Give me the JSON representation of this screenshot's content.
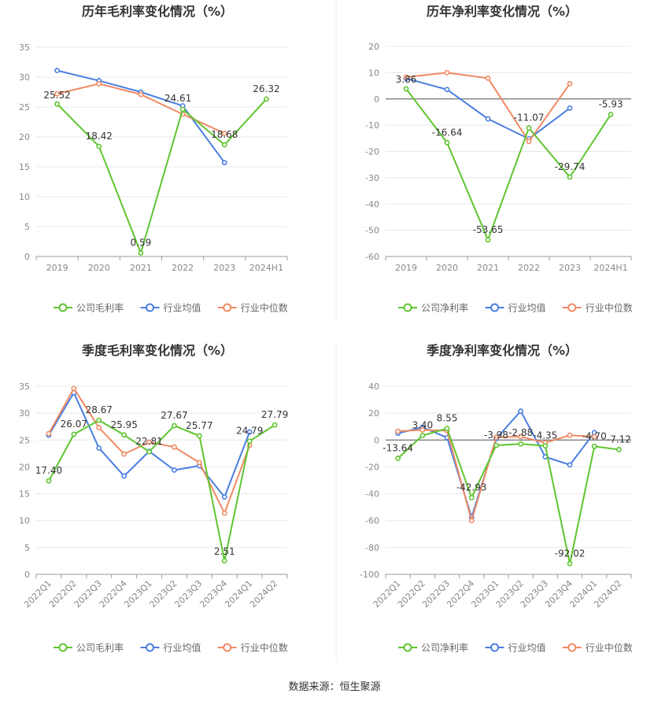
{
  "footer": {
    "source": "数据来源：恒生聚源"
  },
  "colors": {
    "company": "#5ec52f",
    "avg": "#4a7fe0",
    "median": "#f08a64",
    "grid": "#e8e8e8",
    "axis": "#888888",
    "title": "#333333"
  },
  "chart_data": [
    {
      "id": "annual-gross",
      "type": "line",
      "title": "历年毛利率变化情况（%）",
      "categories": [
        "2019",
        "2020",
        "2021",
        "2022",
        "2023",
        "2024H1"
      ],
      "ylim": [
        0,
        35
      ],
      "yticks": [
        0,
        5,
        10,
        15,
        20,
        25,
        30,
        35
      ],
      "grid": true,
      "legend": "bottom",
      "rotate_x": false,
      "series": [
        {
          "name": "公司毛利率",
          "key": "company",
          "values": [
            25.52,
            18.42,
            0.59,
            24.61,
            18.68,
            26.32
          ],
          "labels": [
            "25.52",
            "18.42",
            "0.59",
            "24.61",
            "18.68",
            "26.32"
          ]
        },
        {
          "name": "行业均值",
          "key": "avg",
          "values": [
            31.1,
            29.4,
            27.5,
            25.2,
            15.7,
            null
          ]
        },
        {
          "name": "行业中位数",
          "key": "median",
          "values": [
            27.2,
            28.9,
            27.1,
            23.8,
            20.6,
            null
          ]
        }
      ]
    },
    {
      "id": "annual-net",
      "type": "line",
      "title": "历年净利率变化情况（%）",
      "categories": [
        "2019",
        "2020",
        "2021",
        "2022",
        "2023",
        "2024H1"
      ],
      "ylim": [
        -60,
        20
      ],
      "yticks": [
        -60,
        -50,
        -40,
        -30,
        -20,
        -10,
        0,
        10,
        20
      ],
      "grid": true,
      "legend": "bottom",
      "rotate_x": false,
      "series": [
        {
          "name": "公司净利率",
          "key": "company",
          "values": [
            3.86,
            -16.64,
            -53.65,
            -11.07,
            -29.74,
            -5.93
          ],
          "labels": [
            "3.86",
            "-16.64",
            "-53.65",
            "-11.07",
            "-29.74",
            "-5.93"
          ]
        },
        {
          "name": "行业均值",
          "key": "avg",
          "values": [
            7.8,
            3.6,
            -7.6,
            -15.2,
            -3.5,
            null
          ]
        },
        {
          "name": "行业中位数",
          "key": "median",
          "values": [
            8.3,
            10.0,
            7.9,
            -16.2,
            5.8,
            null
          ]
        }
      ]
    },
    {
      "id": "quarterly-gross",
      "type": "line",
      "title": "季度毛利率变化情况（%）",
      "categories": [
        "2022Q1",
        "2022Q2",
        "2022Q3",
        "2022Q4",
        "2023Q1",
        "2023Q2",
        "2023Q3",
        "2023Q4",
        "2024Q1",
        "2024Q2"
      ],
      "ylim": [
        0,
        35
      ],
      "yticks": [
        0,
        5,
        10,
        15,
        20,
        25,
        30,
        35
      ],
      "grid": true,
      "legend": "bottom",
      "rotate_x": true,
      "series": [
        {
          "name": "公司毛利率",
          "key": "company",
          "values": [
            17.4,
            26.07,
            28.67,
            25.95,
            22.81,
            27.67,
            25.77,
            2.51,
            24.79,
            27.79
          ],
          "labels": [
            "17.40",
            "26.07",
            "28.67",
            "25.95",
            "22.81",
            "27.67",
            "25.77",
            "2.51",
            "24.79",
            "27.79"
          ]
        },
        {
          "name": "行业均值",
          "key": "avg",
          "values": [
            25.9,
            33.8,
            23.5,
            18.3,
            22.9,
            19.4,
            20.2,
            14.4,
            26.5,
            null
          ]
        },
        {
          "name": "行业中位数",
          "key": "median",
          "values": [
            26.2,
            34.6,
            27.3,
            22.4,
            24.6,
            23.7,
            20.8,
            11.4,
            24.0,
            null
          ]
        }
      ]
    },
    {
      "id": "quarterly-net",
      "type": "line",
      "title": "季度净利率变化情况（%）",
      "categories": [
        "2022Q1",
        "2022Q2",
        "2022Q3",
        "2022Q4",
        "2023Q1",
        "2023Q2",
        "2023Q3",
        "2023Q4",
        "2024Q1",
        "2024Q2"
      ],
      "ylim": [
        -100,
        40
      ],
      "yticks": [
        -100,
        -80,
        -60,
        -40,
        -20,
        0,
        20,
        40
      ],
      "grid": true,
      "legend": "bottom",
      "rotate_x": true,
      "series": [
        {
          "name": "公司净利率",
          "key": "company",
          "values": [
            -13.64,
            3.4,
            8.55,
            -42.93,
            -3.98,
            -2.88,
            -4.35,
            -92.02,
            -4.7,
            -7.12
          ],
          "labels": [
            "-13.64",
            "3.40",
            "8.55",
            "-42.93",
            "-3.98",
            "-2.88",
            "-4.35",
            "-92.02",
            "-4.70",
            "-7.12"
          ]
        },
        {
          "name": "行业均值",
          "key": "avg",
          "values": [
            5.0,
            9.5,
            1.8,
            -57.5,
            1.0,
            21.5,
            -12.5,
            -18.5,
            5.5,
            null
          ]
        },
        {
          "name": "行业中位数",
          "key": "median",
          "values": [
            6.5,
            7.5,
            7.0,
            -60.0,
            2.0,
            2.5,
            -2.0,
            3.5,
            2.5,
            null
          ]
        }
      ]
    }
  ]
}
